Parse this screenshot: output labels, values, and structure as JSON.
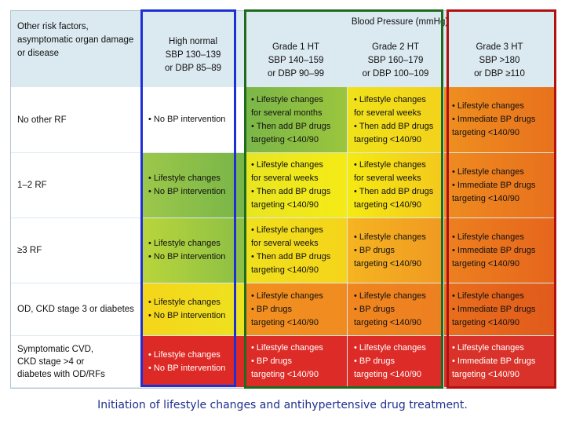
{
  "header": {
    "risk_col": [
      "Other risk factors,",
      "asymptomatic organ damage",
      "or disease"
    ],
    "bp_title": "Blood Pressure (mmHg)",
    "columns": [
      {
        "title": "High normal",
        "l2": "SBP 130–139",
        "l3": "or DBP 85–89"
      },
      {
        "title": "Grade 1 HT",
        "l2": "SBP 140–159",
        "l3": "or DBP 90–99"
      },
      {
        "title": "Grade 2 HT",
        "l2": "SBP 160–179",
        "l3": "or DBP 100–109"
      },
      {
        "title": "Grade 3 HT",
        "l2": "SBP >180",
        "l3": "or DBP ≥110"
      }
    ]
  },
  "rows": [
    {
      "label": [
        "No other RF"
      ],
      "cells": [
        [
          "• No BP intervention"
        ],
        [
          "• Lifestyle changes",
          "  for several months",
          "• Then add BP drugs",
          "  targeting <140/90"
        ],
        [
          "• Lifestyle changes",
          "  for several weeks",
          "• Then add BP drugs",
          "  targeting <140/90"
        ],
        [
          "• Lifestyle changes",
          "• Immediate BP drugs",
          "  targeting <140/90"
        ]
      ]
    },
    {
      "label": [
        "1–2 RF"
      ],
      "cells": [
        [
          "• Lifestyle changes",
          "• No BP intervention"
        ],
        [
          "• Lifestyle changes",
          "  for several weeks",
          "• Then add BP drugs",
          "  targeting <140/90"
        ],
        [
          "• Lifestyle changes",
          "  for several weeks",
          "• Then add BP drugs",
          "  targeting <140/90"
        ],
        [
          "• Lifestyle changes",
          "• Immediate BP drugs",
          "  targeting <140/90"
        ]
      ]
    },
    {
      "label": [
        "≥3 RF"
      ],
      "cells": [
        [
          "• Lifestyle changes",
          "• No BP intervention"
        ],
        [
          "• Lifestyle changes",
          "  for several weeks",
          "• Then add BP drugs",
          "  targeting <140/90"
        ],
        [
          "• Lifestyle changes",
          "• BP drugs",
          "  targeting <140/90"
        ],
        [
          "• Lifestyle changes",
          "• Immediate BP drugs",
          "  targeting <140/90"
        ]
      ]
    },
    {
      "label": [
        "OD, CKD stage 3 or diabetes"
      ],
      "cells": [
        [
          "• Lifestyle changes",
          "• No BP intervention"
        ],
        [
          "• Lifestyle changes",
          "• BP drugs",
          "  targeting <140/90"
        ],
        [
          "• Lifestyle changes",
          "• BP drugs",
          "  targeting <140/90"
        ],
        [
          "• Lifestyle changes",
          "• Immediate BP drugs",
          "  targeting <140/90"
        ]
      ]
    },
    {
      "label": [
        "Symptomatic CVD,",
        "CKD stage >4 or",
        "diabetes with OD/RFs"
      ],
      "cells": [
        [
          "• Lifestyle changes",
          "• No BP intervention"
        ],
        [
          "• Lifestyle changes",
          "• BP drugs",
          "  targeting <140/90"
        ],
        [
          "• Lifestyle changes",
          "• BP drugs",
          "  targeting <140/90"
        ],
        [
          "• Lifestyle changes",
          "• Immediate BP drugs",
          "  targeting <140/90"
        ]
      ]
    }
  ],
  "cell_colors": [
    [
      "#ffffff",
      "linear-gradient(to right,#7ab648,#9bc53d)",
      "linear-gradient(to right,#f0e21a,#f3d21b)",
      "linear-gradient(to right,#ef8f1f,#e8711d)"
    ],
    [
      "linear-gradient(to right,#9cc84a,#78b548)",
      "linear-gradient(to right,#e8e521,#f5eb16)",
      "linear-gradient(to right,#f5ea12,#f4c81d)",
      "linear-gradient(to right,#ef8b20,#e8701d)"
    ],
    [
      "linear-gradient(to right,#b9d53b,#8cbf45)",
      "linear-gradient(to right,#f0e01c,#f5d41a)",
      "linear-gradient(to right,#f5b520,#f09922)",
      "linear-gradient(to right,#ed8020,#e6661c)"
    ],
    [
      "linear-gradient(to right,#f5d51a,#eee21f)",
      "linear-gradient(to right,#f2901f,#f08b20)",
      "linear-gradient(to right,#f0861f,#ed7f20)",
      "linear-gradient(to right,#e96f1d,#e15a1c)"
    ],
    [
      "#de2a26",
      "#dd2b27",
      "#dd2b27",
      "#d9322a"
    ]
  ],
  "highlight_colors": {
    "blue": "#1f2fd6",
    "green": "#1e6b1e",
    "red": "#b01010"
  },
  "caption": "Initiation of lifestyle changes and antihypertensive drug treatment."
}
